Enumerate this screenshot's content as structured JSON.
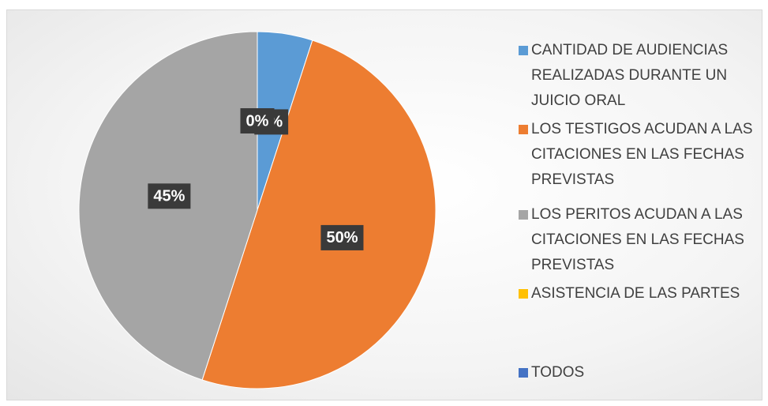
{
  "chart_data": {
    "type": "pie",
    "categories": [
      "CANTIDAD DE AUDIENCIAS REALIZADAS DURANTE UN JUICIO ORAL",
      "LOS TESTIGOS ACUDAN A LAS CITACIONES EN LAS FECHAS PREVISTAS",
      "LOS PERITOS ACUDAN A LAS CITACIONES EN LAS FECHAS PREVISTAS",
      "ASISTENCIA DE LAS PARTES",
      "TODOS"
    ],
    "values": [
      5,
      50,
      45,
      0,
      0
    ],
    "value_labels": [
      "5%",
      "50%",
      "45%",
      "0%",
      "0%"
    ],
    "colors": [
      "#5b9bd5",
      "#ed7d31",
      "#a5a5a5",
      "#ffc000",
      "#4472c4"
    ],
    "legend": "right"
  }
}
